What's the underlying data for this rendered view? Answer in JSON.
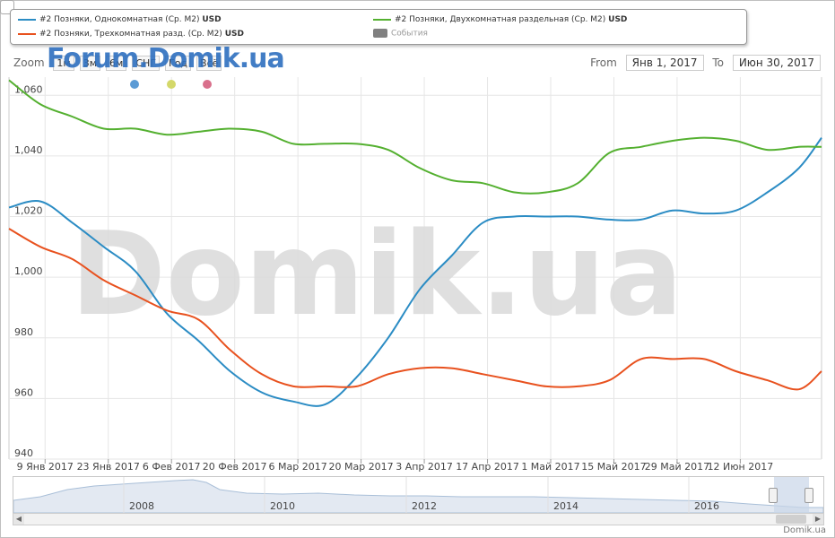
{
  "watermark_main": "Domik.ua",
  "watermark_logo": "Forum.Domik.ua",
  "site_label": "Domik.ua",
  "legend": [
    {
      "label": "#2 Позняки, Однокомнатная (Ср. М2)",
      "unit": "USD",
      "color": "#2b8cc4"
    },
    {
      "label": "#2 Позняки, Двухкомнатная раздельная (Ср. М2)",
      "unit": "USD",
      "color": "#54b030"
    },
    {
      "label": "#2 Позняки, Трехкомнатная разд. (Ср. М2)",
      "unit": "USD",
      "color": "#e8511e"
    },
    {
      "label": "События",
      "unit": "",
      "color": "#808080"
    }
  ],
  "zoom": {
    "label": "Zoom",
    "buttons": [
      "1м",
      "3м",
      "6м",
      "СНГ",
      "Год",
      "Всё"
    ]
  },
  "range": {
    "from_label": "From",
    "from_value": "Янв 1, 2017",
    "to_label": "To",
    "to_value": "Июн 30, 2017"
  },
  "event_dots": [
    "#5b9bd5",
    "#d4d86a",
    "#d9708c"
  ],
  "chart_data": {
    "type": "line",
    "y_ticks": [
      "1,060",
      "1,040",
      "1,020",
      "1,000",
      "980",
      "960",
      "940"
    ],
    "ylim": [
      940,
      1066
    ],
    "x_ticks": [
      "9 Янв 2017",
      "23 Янв 2017",
      "6 Фев 2017",
      "20 Фев 2017",
      "6 Мар 2017",
      "20 Мар 2017",
      "3 Апр 2017",
      "17 Апр 2017",
      "1 Май 2017",
      "15 Май 2017",
      "29 Май 2017",
      "12 Июн 2017"
    ],
    "x": [
      "2017-01-01",
      "2017-01-08",
      "2017-01-15",
      "2017-01-22",
      "2017-01-29",
      "2017-02-05",
      "2017-02-12",
      "2017-02-19",
      "2017-02-26",
      "2017-03-05",
      "2017-03-12",
      "2017-03-19",
      "2017-03-26",
      "2017-04-02",
      "2017-04-09",
      "2017-04-16",
      "2017-04-23",
      "2017-04-30",
      "2017-05-07",
      "2017-05-14",
      "2017-05-21",
      "2017-05-28",
      "2017-06-04",
      "2017-06-11",
      "2017-06-18",
      "2017-06-25",
      "2017-06-30"
    ],
    "series": [
      {
        "name": "#2 Позняки, Однокомнатная (Ср. М2)",
        "color": "#2b8cc4",
        "values": [
          1023,
          1025,
          1018,
          1010,
          1002,
          988,
          979,
          969,
          962,
          959,
          958,
          967,
          980,
          996,
          1007,
          1018,
          1020,
          1020,
          1020,
          1019,
          1019,
          1022,
          1021,
          1022,
          1028,
          1036,
          1046
        ]
      },
      {
        "name": "#2 Позняки, Двухкомнатная раздельная (Ср. М2)",
        "color": "#54b030",
        "values": [
          1065,
          1057,
          1053,
          1049,
          1049,
          1047,
          1048,
          1049,
          1048,
          1044,
          1044,
          1044,
          1042,
          1036,
          1032,
          1031,
          1028,
          1028,
          1031,
          1041,
          1043,
          1045,
          1046,
          1045,
          1042,
          1043,
          1043
        ]
      },
      {
        "name": "#2 Позняки, Трехкомнатная разд. (Ср. М2)",
        "color": "#e8511e",
        "values": [
          1016,
          1010,
          1006,
          999,
          994,
          989,
          986,
          976,
          968,
          964,
          964,
          964,
          968,
          970,
          970,
          968,
          966,
          964,
          964,
          966,
          973,
          973,
          973,
          969,
          966,
          963,
          969
        ]
      }
    ],
    "navigator_years": [
      "2008",
      "2010",
      "2012",
      "2014",
      "2016"
    ]
  }
}
